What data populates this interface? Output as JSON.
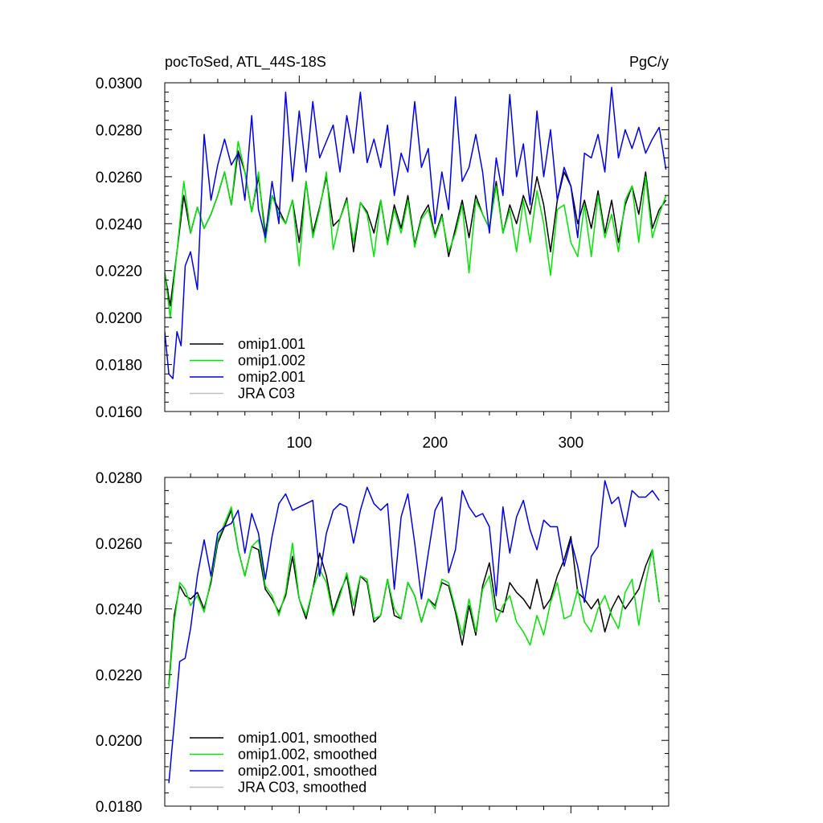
{
  "colors": {
    "omip1_001": "#000000",
    "omip1_002": "#00e600",
    "omip2_001": "#0000ee",
    "jra_c03": "#bfbfbf"
  },
  "chart_data": [
    {
      "type": "line",
      "title": "pocToSed, ATL_44S-18S",
      "units": "PgC/y",
      "xlim": [
        1,
        372
      ],
      "ylim": [
        0.016,
        0.03
      ],
      "xticks": [
        100,
        200,
        300
      ],
      "xtick_labels": [
        "100",
        "200",
        "300"
      ],
      "yticks": [
        0.016,
        0.018,
        0.02,
        0.022,
        0.024,
        0.026,
        0.028,
        0.03
      ],
      "ytick_labels": [
        "0.0160",
        "0.0180",
        "0.0200",
        "0.0220",
        "0.0240",
        "0.0260",
        "0.0280",
        "0.0300"
      ],
      "legend_position": "bottom-left",
      "series": [
        {
          "name": "omip1.001",
          "color_key": "omip1_001",
          "x": [
            1,
            5,
            10,
            15,
            20,
            25,
            30,
            35,
            40,
            45,
            50,
            55,
            60,
            65,
            70,
            75,
            80,
            85,
            90,
            95,
            100,
            105,
            110,
            115,
            120,
            125,
            130,
            135,
            140,
            145,
            150,
            155,
            160,
            165,
            170,
            175,
            180,
            185,
            190,
            195,
            200,
            205,
            210,
            215,
            220,
            225,
            230,
            235,
            240,
            245,
            250,
            255,
            260,
            265,
            270,
            275,
            280,
            285,
            290,
            295,
            300,
            305,
            310,
            315,
            320,
            325,
            330,
            335,
            340,
            345,
            350,
            355,
            360,
            365,
            370
          ],
          "y": [
            0.0219,
            0.0205,
            0.0228,
            0.0252,
            0.0236,
            0.0247,
            0.0238,
            0.0244,
            0.0252,
            0.0262,
            0.0248,
            0.0271,
            0.0262,
            0.0245,
            0.026,
            0.0236,
            0.0252,
            0.0246,
            0.024,
            0.025,
            0.0232,
            0.0258,
            0.0236,
            0.0247,
            0.026,
            0.0239,
            0.0242,
            0.0251,
            0.0228,
            0.0249,
            0.0245,
            0.0236,
            0.025,
            0.0232,
            0.0248,
            0.0238,
            0.0252,
            0.0231,
            0.0243,
            0.0248,
            0.0235,
            0.0244,
            0.0226,
            0.0238,
            0.025,
            0.0234,
            0.0252,
            0.0244,
            0.0238,
            0.0258,
            0.0236,
            0.0248,
            0.024,
            0.0252,
            0.0244,
            0.026,
            0.0248,
            0.0228,
            0.025,
            0.0262,
            0.0256,
            0.024,
            0.025,
            0.0238,
            0.0254,
            0.0236,
            0.025,
            0.0232,
            0.0248,
            0.0256,
            0.0244,
            0.0262,
            0.0238,
            0.0246,
            0.025
          ]
        },
        {
          "name": "omip1.002",
          "color_key": "omip1_002",
          "x": [
            1,
            5,
            10,
            15,
            20,
            25,
            30,
            35,
            40,
            45,
            50,
            55,
            60,
            65,
            70,
            75,
            80,
            85,
            90,
            95,
            100,
            105,
            110,
            115,
            120,
            125,
            130,
            135,
            140,
            145,
            150,
            155,
            160,
            165,
            170,
            175,
            180,
            185,
            190,
            195,
            200,
            205,
            210,
            215,
            220,
            225,
            230,
            235,
            240,
            245,
            250,
            255,
            260,
            265,
            270,
            275,
            280,
            285,
            290,
            295,
            300,
            305,
            310,
            315,
            320,
            325,
            330,
            335,
            340,
            345,
            350,
            355,
            360,
            365,
            370
          ],
          "y": [
            0.0219,
            0.02,
            0.0228,
            0.0258,
            0.0236,
            0.0247,
            0.0238,
            0.0244,
            0.0252,
            0.0262,
            0.0248,
            0.0275,
            0.0262,
            0.0245,
            0.0262,
            0.0232,
            0.0252,
            0.0244,
            0.024,
            0.025,
            0.0222,
            0.0258,
            0.0234,
            0.0246,
            0.0262,
            0.0229,
            0.0242,
            0.025,
            0.0232,
            0.0249,
            0.0244,
            0.0226,
            0.025,
            0.0231,
            0.0246,
            0.0236,
            0.025,
            0.023,
            0.0242,
            0.0246,
            0.0234,
            0.0243,
            0.0228,
            0.0236,
            0.0248,
            0.0219,
            0.025,
            0.0244,
            0.0238,
            0.0256,
            0.0236,
            0.0246,
            0.0228,
            0.025,
            0.0232,
            0.0254,
            0.024,
            0.0218,
            0.0246,
            0.0248,
            0.0232,
            0.0226,
            0.0248,
            0.0226,
            0.0252,
            0.0234,
            0.0244,
            0.0228,
            0.025,
            0.0256,
            0.0232,
            0.026,
            0.0234,
            0.0244,
            0.0252
          ]
        },
        {
          "name": "omip2.001",
          "color_key": "omip2_001",
          "x": [
            1,
            4,
            7,
            10,
            13,
            16,
            20,
            25,
            30,
            35,
            40,
            45,
            50,
            55,
            60,
            65,
            70,
            75,
            80,
            85,
            90,
            95,
            100,
            105,
            110,
            115,
            120,
            125,
            130,
            135,
            140,
            145,
            150,
            155,
            160,
            165,
            170,
            175,
            180,
            185,
            190,
            195,
            200,
            205,
            210,
            215,
            220,
            225,
            230,
            235,
            240,
            245,
            250,
            255,
            260,
            265,
            270,
            275,
            280,
            285,
            290,
            295,
            300,
            305,
            310,
            315,
            320,
            325,
            330,
            335,
            340,
            345,
            350,
            355,
            360,
            365,
            370
          ],
          "y": [
            0.0194,
            0.0176,
            0.0174,
            0.0194,
            0.0188,
            0.0222,
            0.0228,
            0.0212,
            0.0278,
            0.025,
            0.0265,
            0.0276,
            0.0265,
            0.027,
            0.025,
            0.0286,
            0.0246,
            0.0234,
            0.0258,
            0.024,
            0.0296,
            0.0258,
            0.0288,
            0.0262,
            0.0292,
            0.0268,
            0.0275,
            0.0282,
            0.0262,
            0.0286,
            0.027,
            0.0296,
            0.0266,
            0.0276,
            0.0264,
            0.0282,
            0.0252,
            0.027,
            0.0262,
            0.0292,
            0.0264,
            0.0272,
            0.024,
            0.0262,
            0.0246,
            0.0294,
            0.0258,
            0.0264,
            0.0278,
            0.0262,
            0.0236,
            0.0268,
            0.0252,
            0.0295,
            0.026,
            0.0274,
            0.0248,
            0.0288,
            0.026,
            0.028,
            0.025,
            0.0264,
            0.0256,
            0.0234,
            0.027,
            0.0268,
            0.0278,
            0.0262,
            0.0298,
            0.0268,
            0.028,
            0.0272,
            0.0281,
            0.027,
            0.0276,
            0.0281,
            0.0263
          ]
        },
        {
          "name": "JRA C03",
          "color_key": "jra_c03",
          "x": [],
          "y": []
        }
      ]
    },
    {
      "type": "line",
      "title": "",
      "units": "",
      "xlim": [
        1,
        372
      ],
      "ylim": [
        0.018,
        0.028
      ],
      "xticks": [
        100,
        200,
        300
      ],
      "xtick_labels": [
        "",
        "",
        ""
      ],
      "yticks": [
        0.018,
        0.02,
        0.022,
        0.024,
        0.026,
        0.028
      ],
      "ytick_labels": [
        "0.0180",
        "0.0200",
        "0.0220",
        "0.0240",
        "0.0260",
        "0.0280"
      ],
      "legend_position": "bottom-left",
      "series": [
        {
          "name": "omip1.001, smoothed",
          "color_key": "omip1_001",
          "x": [
            4,
            8,
            12,
            16,
            20,
            25,
            30,
            35,
            40,
            45,
            50,
            55,
            60,
            65,
            70,
            75,
            80,
            85,
            90,
            95,
            100,
            105,
            110,
            115,
            120,
            125,
            130,
            135,
            140,
            145,
            150,
            155,
            160,
            165,
            170,
            175,
            180,
            185,
            190,
            195,
            200,
            205,
            210,
            215,
            220,
            225,
            230,
            235,
            240,
            245,
            250,
            255,
            260,
            265,
            270,
            275,
            280,
            285,
            290,
            295,
            300,
            305,
            310,
            315,
            320,
            325,
            330,
            335,
            340,
            345,
            350,
            355,
            360,
            365
          ],
          "y": [
            0.0217,
            0.0238,
            0.0247,
            0.0244,
            0.0243,
            0.0245,
            0.024,
            0.0248,
            0.026,
            0.0265,
            0.027,
            0.0258,
            0.025,
            0.0259,
            0.0258,
            0.0246,
            0.0243,
            0.0239,
            0.0244,
            0.0256,
            0.0243,
            0.0237,
            0.0246,
            0.0257,
            0.025,
            0.0239,
            0.0245,
            0.025,
            0.0238,
            0.025,
            0.0248,
            0.0236,
            0.0238,
            0.0249,
            0.0238,
            0.0237,
            0.0248,
            0.0244,
            0.0236,
            0.0243,
            0.0241,
            0.0248,
            0.0247,
            0.0239,
            0.0229,
            0.0241,
            0.0232,
            0.0247,
            0.0254,
            0.024,
            0.0239,
            0.0248,
            0.0245,
            0.0243,
            0.024,
            0.0249,
            0.024,
            0.0243,
            0.025,
            0.0255,
            0.0262,
            0.0245,
            0.0243,
            0.024,
            0.0243,
            0.0233,
            0.024,
            0.0244,
            0.024,
            0.0243,
            0.0246,
            0.0253,
            0.0258,
            0.0242
          ]
        },
        {
          "name": "omip1.002, smoothed",
          "color_key": "omip1_002",
          "x": [
            4,
            8,
            12,
            16,
            20,
            25,
            30,
            35,
            40,
            45,
            50,
            55,
            60,
            65,
            70,
            75,
            80,
            85,
            90,
            95,
            100,
            105,
            110,
            115,
            120,
            125,
            130,
            135,
            140,
            145,
            150,
            155,
            160,
            165,
            170,
            175,
            180,
            185,
            190,
            195,
            200,
            205,
            210,
            215,
            220,
            225,
            230,
            235,
            240,
            245,
            250,
            255,
            260,
            265,
            270,
            275,
            280,
            285,
            290,
            295,
            300,
            305,
            310,
            315,
            320,
            325,
            330,
            335,
            340,
            345,
            350,
            355,
            360,
            365
          ],
          "y": [
            0.0216,
            0.0236,
            0.0248,
            0.0246,
            0.0241,
            0.0244,
            0.0239,
            0.0249,
            0.0261,
            0.0266,
            0.0271,
            0.0258,
            0.025,
            0.0259,
            0.0261,
            0.0247,
            0.0244,
            0.0238,
            0.0245,
            0.026,
            0.0243,
            0.0238,
            0.0246,
            0.0252,
            0.0248,
            0.0238,
            0.0244,
            0.0251,
            0.0241,
            0.025,
            0.0249,
            0.0237,
            0.0238,
            0.0249,
            0.024,
            0.0237,
            0.0248,
            0.0244,
            0.0236,
            0.0243,
            0.024,
            0.0249,
            0.0248,
            0.024,
            0.0232,
            0.0243,
            0.0233,
            0.0246,
            0.025,
            0.0236,
            0.0241,
            0.0244,
            0.0236,
            0.0233,
            0.0229,
            0.0238,
            0.0232,
            0.0242,
            0.0248,
            0.0237,
            0.0238,
            0.0246,
            0.0236,
            0.0233,
            0.024,
            0.0244,
            0.0238,
            0.0234,
            0.0245,
            0.0249,
            0.0235,
            0.0248,
            0.0258,
            0.0242
          ]
        },
        {
          "name": "omip2.001, smoothed",
          "color_key": "omip2_001",
          "x": [
            4,
            8,
            12,
            16,
            20,
            25,
            30,
            35,
            40,
            45,
            50,
            55,
            60,
            65,
            70,
            75,
            80,
            85,
            90,
            95,
            100,
            105,
            110,
            115,
            120,
            125,
            130,
            135,
            140,
            145,
            150,
            155,
            160,
            165,
            170,
            175,
            180,
            185,
            190,
            195,
            200,
            205,
            210,
            215,
            220,
            225,
            230,
            235,
            240,
            245,
            250,
            255,
            260,
            265,
            270,
            275,
            280,
            285,
            290,
            295,
            300,
            305,
            310,
            315,
            320,
            325,
            330,
            335,
            340,
            345,
            350,
            355,
            360,
            365
          ],
          "y": [
            0.0187,
            0.0205,
            0.0224,
            0.0225,
            0.0234,
            0.025,
            0.0261,
            0.025,
            0.0263,
            0.0265,
            0.0266,
            0.027,
            0.0257,
            0.0269,
            0.0263,
            0.0249,
            0.0262,
            0.0272,
            0.0275,
            0.027,
            0.0271,
            0.0272,
            0.0273,
            0.025,
            0.0263,
            0.027,
            0.0272,
            0.0271,
            0.026,
            0.027,
            0.0277,
            0.0272,
            0.027,
            0.0272,
            0.0246,
            0.0268,
            0.0275,
            0.026,
            0.0243,
            0.0257,
            0.027,
            0.0274,
            0.0251,
            0.0258,
            0.0276,
            0.0271,
            0.0268,
            0.0269,
            0.0265,
            0.0244,
            0.0271,
            0.0257,
            0.0268,
            0.0273,
            0.0264,
            0.0258,
            0.0267,
            0.0265,
            0.0265,
            0.0253,
            0.0261,
            0.0253,
            0.0242,
            0.0256,
            0.0259,
            0.0279,
            0.0272,
            0.0274,
            0.0265,
            0.0276,
            0.0274,
            0.0274,
            0.0276,
            0.0273
          ]
        },
        {
          "name": "JRA C03, smoothed",
          "color_key": "jra_c03",
          "x": [],
          "y": []
        }
      ]
    }
  ]
}
